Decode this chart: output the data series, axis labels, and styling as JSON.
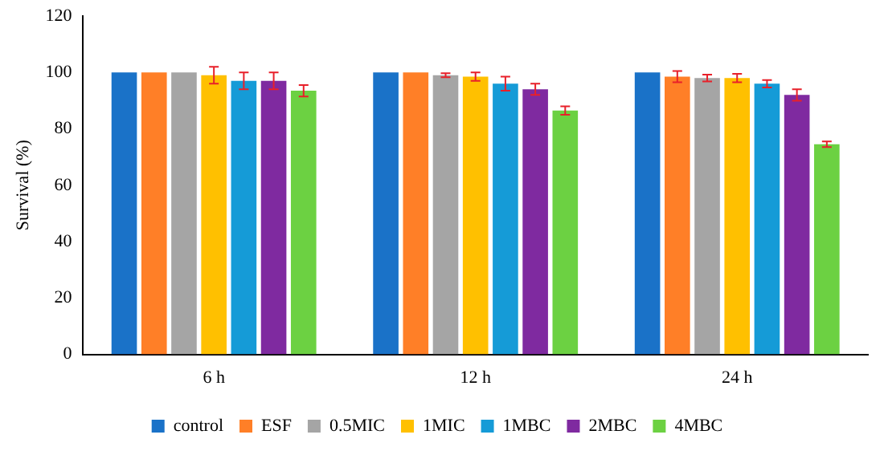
{
  "chart_data": {
    "type": "bar",
    "ylabel": "Survival (%)",
    "categories": [
      "6 h",
      "12 h",
      "24 h"
    ],
    "ylim": [
      0,
      120
    ],
    "yticks": [
      0,
      20,
      40,
      60,
      80,
      100,
      120
    ],
    "grid": false,
    "legend": "bottom",
    "series": [
      {
        "name": "control",
        "color": "#1a72c8",
        "values": [
          100,
          100,
          100
        ],
        "errors": [
          null,
          null,
          null
        ]
      },
      {
        "name": "ESF",
        "color": "#ff7f27",
        "values": [
          100,
          100,
          98.5
        ],
        "errors": [
          null,
          null,
          2
        ]
      },
      {
        "name": "0.5MIC",
        "color": "#a5a5a5",
        "values": [
          100,
          99,
          98
        ],
        "errors": [
          null,
          0.7,
          1.2
        ]
      },
      {
        "name": "1MIC",
        "color": "#ffc000",
        "values": [
          99,
          98.5,
          98
        ],
        "errors": [
          3,
          1.5,
          1.5
        ]
      },
      {
        "name": "1MBC",
        "color": "#159bd7",
        "values": [
          97,
          96,
          96
        ],
        "errors": [
          3,
          2.5,
          1.3
        ]
      },
      {
        "name": "2MBC",
        "color": "#7f2aa0",
        "values": [
          97,
          94,
          92
        ],
        "errors": [
          3,
          2,
          2
        ]
      },
      {
        "name": "4MBC",
        "color": "#6cd142",
        "values": [
          93.5,
          86.5,
          74.5
        ],
        "errors": [
          2,
          1.5,
          1
        ]
      }
    ]
  }
}
